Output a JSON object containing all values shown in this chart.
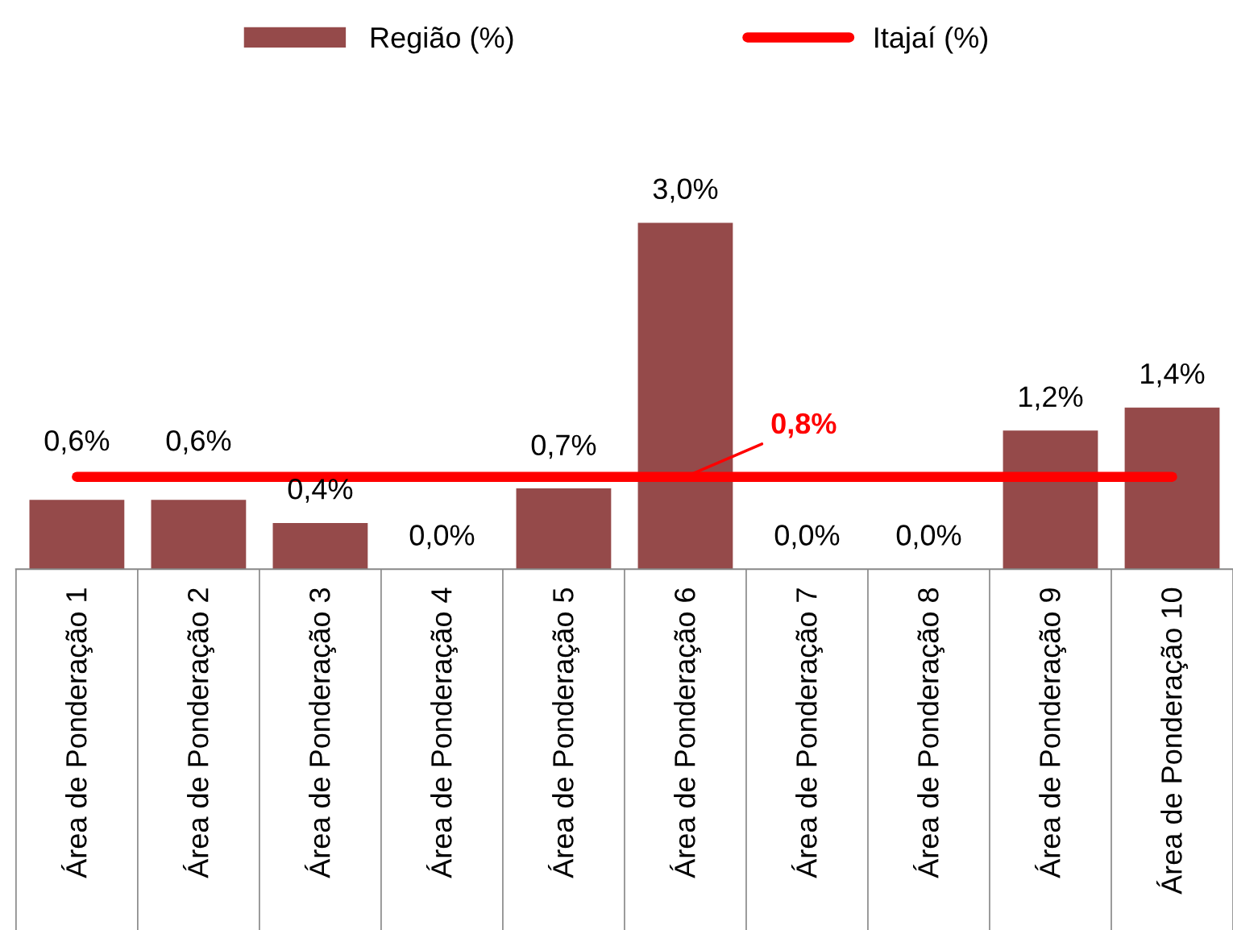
{
  "chart_data": {
    "type": "bar",
    "categories": [
      "Área de Ponderação 1",
      "Área de Ponderação 2",
      "Área de Ponderação 3",
      "Área de Ponderação 4",
      "Área de Ponderação 5",
      "Área de Ponderação 6",
      "Área de Ponderação 7",
      "Área de Ponderação 8",
      "Área de Ponderação 9",
      "Área de Ponderação 10"
    ],
    "series": [
      {
        "name": "Região (%)",
        "color": "#954a4a",
        "values": [
          0.6,
          0.6,
          0.4,
          0.0,
          0.7,
          3.0,
          0.0,
          0.0,
          1.2,
          1.4
        ],
        "value_labels": [
          "0,6%",
          "0,6%",
          "0,4%",
          "0,0%",
          "0,7%",
          "3,0%",
          "0,0%",
          "0,0%",
          "1,2%",
          "1,4%"
        ]
      },
      {
        "name": "Itajaí (%)",
        "type": "line",
        "color": "#ff0000",
        "values": [
          0.8,
          0.8,
          0.8,
          0.8,
          0.8,
          0.8,
          0.8,
          0.8,
          0.8,
          0.8
        ]
      }
    ],
    "annotations": [
      {
        "text": "0,8%",
        "x": "Área de Ponderação 6",
        "y": 0.8
      }
    ],
    "legend": "top",
    "grid": false,
    "marker": "none",
    "line_style": "solid"
  }
}
